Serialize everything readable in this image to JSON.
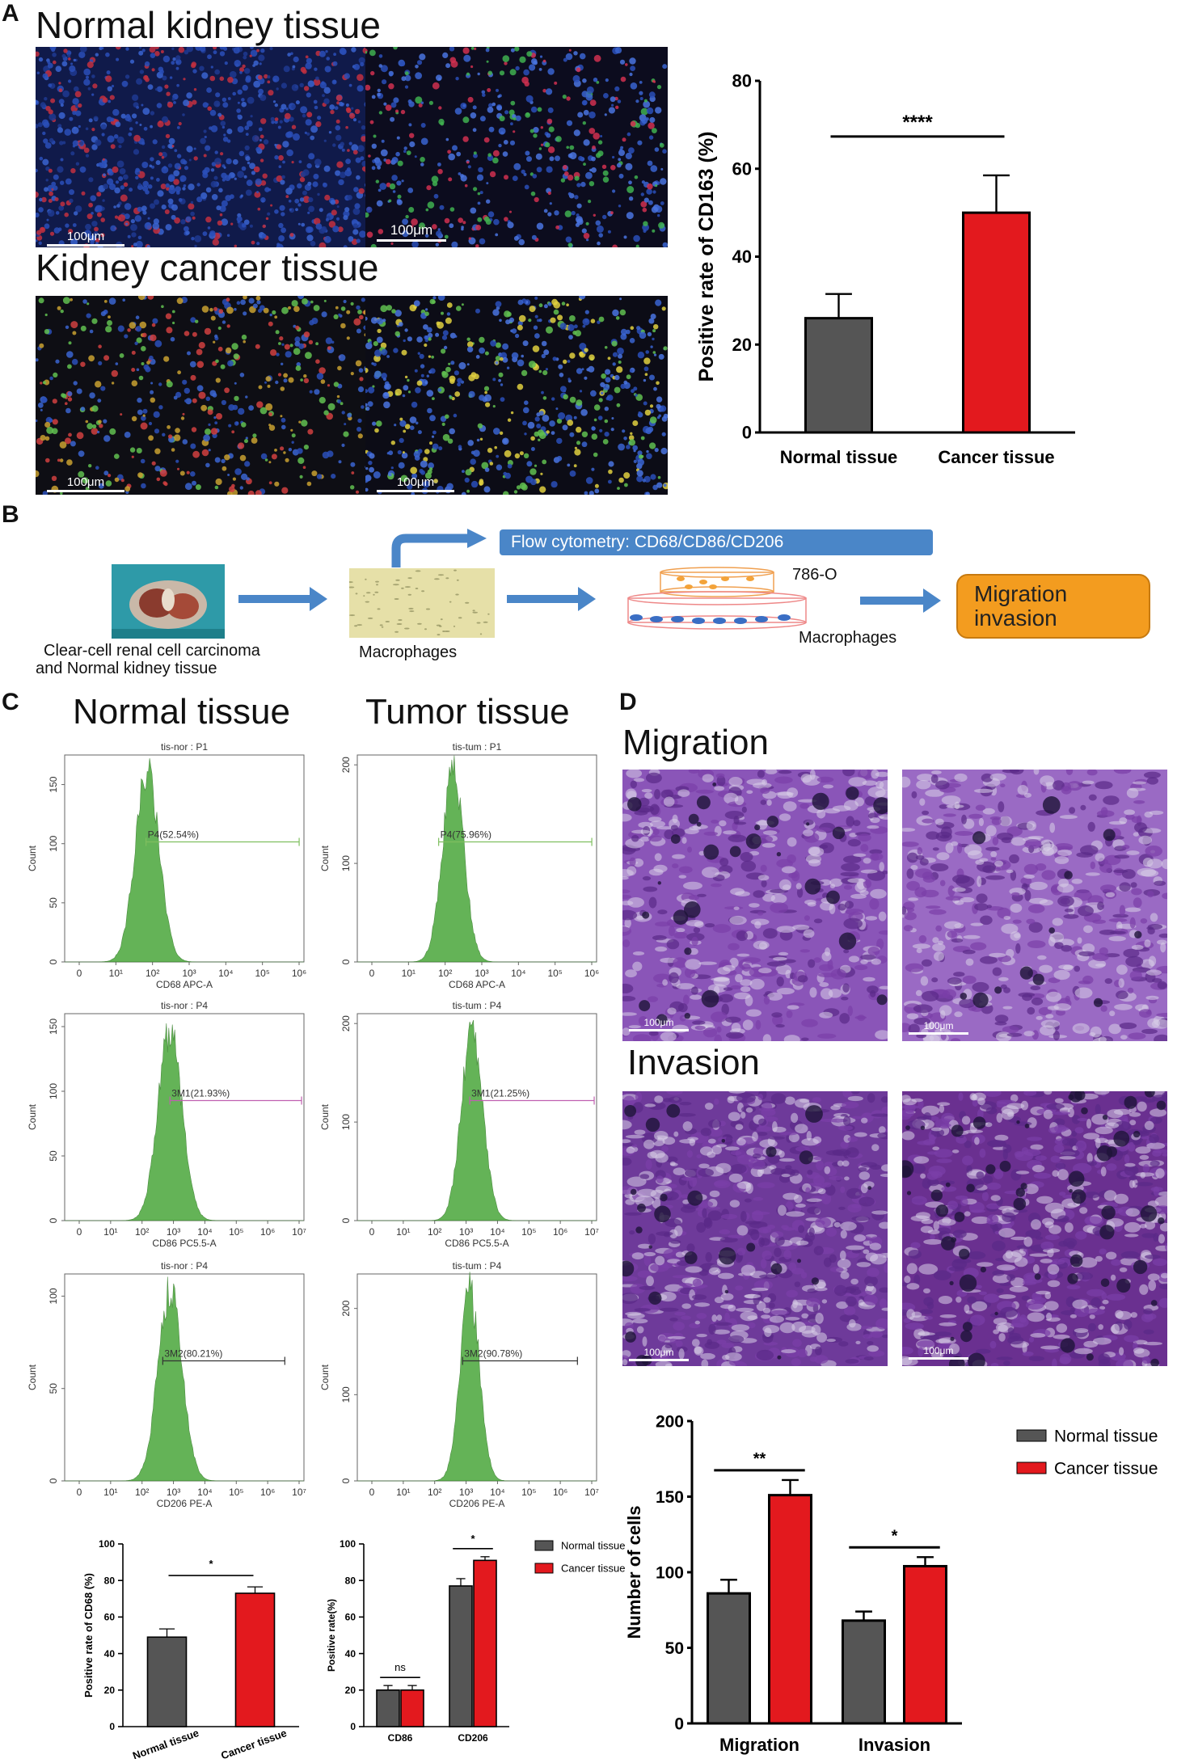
{
  "panels": {
    "A": "A",
    "B": "B",
    "C": "C",
    "D": "D"
  },
  "panelA": {
    "normal_title": "Normal kidney tissue",
    "cancer_title": "Kidney cancer tissue",
    "scale_labels": [
      "100μm",
      "100μm",
      "100μm",
      "100μm"
    ]
  },
  "panelB": {
    "flow_label": "Flow cytometry: CD68/CD86/CD206",
    "cell_line": "786-O",
    "macrophages_lower": "Macrophages",
    "source_caption_1": "Clear-cell renal cell carcinoma",
    "source_caption_2": "and Normal kidney tissue",
    "macrophages_caption": "Macrophages",
    "result_line1": "Migration",
    "result_line2": "invasion"
  },
  "panelC": {
    "normal_title": "Normal tissue",
    "tumor_title": "Tumor tissue",
    "histograms": [
      {
        "title": "tis-nor : P1",
        "xlabel": "CD68 APC-A",
        "ylabel": "Count",
        "gate": "P4(52.54%)",
        "yticks": [
          0,
          50,
          100,
          150
        ],
        "ymax": 175,
        "xticks": [
          "0",
          "10¹",
          "10²",
          "10³",
          "10⁴",
          "10⁵",
          "10⁶"
        ],
        "gate_color": "#7fbf5f"
      },
      {
        "title": "tis-tum : P1",
        "xlabel": "CD68 APC-A",
        "ylabel": "Count",
        "gate": "P4(75.96%)",
        "yticks": [
          0,
          100,
          200
        ],
        "ymax": 210,
        "xticks": [
          "0",
          "10¹",
          "10²",
          "10³",
          "10⁴",
          "10⁵",
          "10⁶"
        ],
        "gate_color": "#7fbf5f"
      },
      {
        "title": "tis-nor : P4",
        "xlabel": "CD86 PC5.5-A",
        "ylabel": "Count",
        "gate": "3M1(21.93%)",
        "yticks": [
          0,
          50,
          100,
          150
        ],
        "ymax": 160,
        "xticks": [
          "0",
          "10¹",
          "10²",
          "10³",
          "10⁴",
          "10⁵",
          "10⁶",
          "10⁷"
        ],
        "gate_color": "#c060b0"
      },
      {
        "title": "tis-tum : P4",
        "xlabel": "CD86 PC5.5-A",
        "ylabel": "Count",
        "gate": "3M1(21.25%)",
        "yticks": [
          0,
          100,
          200
        ],
        "ymax": 210,
        "xticks": [
          "0",
          "10¹",
          "10²",
          "10³",
          "10⁴",
          "10⁵",
          "10⁶",
          "10⁷"
        ],
        "gate_color": "#c060b0"
      },
      {
        "title": "tis-nor : P4",
        "xlabel": "CD206 PE-A",
        "ylabel": "Count",
        "gate": "3M2(80.21%)",
        "yticks": [
          0,
          50,
          100
        ],
        "ymax": 112,
        "xticks": [
          "0",
          "10¹",
          "10²",
          "10³",
          "10⁴",
          "10⁵",
          "10⁶",
          "10⁷"
        ],
        "gate_color": "#333333"
      },
      {
        "title": "tis-tum : P4",
        "xlabel": "CD206 PE-A",
        "ylabel": "Count",
        "gate": "3M2(90.78%)",
        "yticks": [
          0,
          100,
          200
        ],
        "ymax": 240,
        "xticks": [
          "0",
          "10¹",
          "10²",
          "10³",
          "10⁴",
          "10⁵",
          "10⁶",
          "10⁷"
        ],
        "gate_color": "#333333"
      }
    ]
  },
  "panelD": {
    "migration_title": "Migration",
    "invasion_title": "Invasion",
    "scale_labels": [
      "100μm",
      "100μm",
      "100μm",
      "100μm"
    ]
  },
  "colors": {
    "normal": "#555555",
    "cancer": "#e3191e",
    "flow_box": "#4a86c8",
    "result_box": "#f39c1f"
  },
  "chart_data": [
    {
      "id": "A_cd163",
      "type": "bar",
      "categories": [
        "Normal  tissue",
        "Cancer tissue"
      ],
      "values": [
        26,
        50
      ],
      "errors": [
        5.5,
        8.5
      ],
      "ylabel": "Positive rate of  CD163 (%)",
      "ylim": [
        0,
        80
      ],
      "yticks": [
        0,
        20,
        40,
        60,
        80
      ],
      "significance": "****"
    },
    {
      "id": "C_cd68",
      "type": "bar",
      "categories": [
        "Normal tissue",
        "Cancer tissue"
      ],
      "values": [
        49,
        73
      ],
      "errors": [
        4.5,
        3.5
      ],
      "ylabel": "Positive rate of  CD68 (%)",
      "ylim": [
        0,
        100
      ],
      "yticks": [
        0,
        20,
        40,
        60,
        80,
        100
      ],
      "significance": "*"
    },
    {
      "id": "C_cd86_cd206",
      "type": "bar",
      "categories": [
        "CD86",
        "CD206"
      ],
      "series": [
        {
          "name": "Normal tissue",
          "values": [
            20,
            77
          ],
          "errors": [
            2.5,
            4
          ]
        },
        {
          "name": "Cancer tissue",
          "values": [
            20,
            91
          ],
          "errors": [
            2.5,
            2
          ]
        }
      ],
      "ylabel": "Positive rate(%)",
      "ylim": [
        0,
        100
      ],
      "yticks": [
        0,
        20,
        40,
        60,
        80,
        100
      ],
      "significance": [
        "ns",
        "*"
      ],
      "legend": "top-right"
    },
    {
      "id": "D_cells",
      "type": "bar",
      "categories": [
        "Migration",
        "Invasion"
      ],
      "series": [
        {
          "name": "Normal tissue",
          "values": [
            86,
            68
          ],
          "errors": [
            9,
            6
          ]
        },
        {
          "name": "Cancer tissue",
          "values": [
            151,
            104
          ],
          "errors": [
            10,
            6
          ]
        }
      ],
      "ylabel": "Number of cells",
      "ylim": [
        0,
        200
      ],
      "yticks": [
        0,
        50,
        100,
        150,
        200
      ],
      "significance": [
        "**",
        "*"
      ],
      "legend": "top-right"
    }
  ]
}
